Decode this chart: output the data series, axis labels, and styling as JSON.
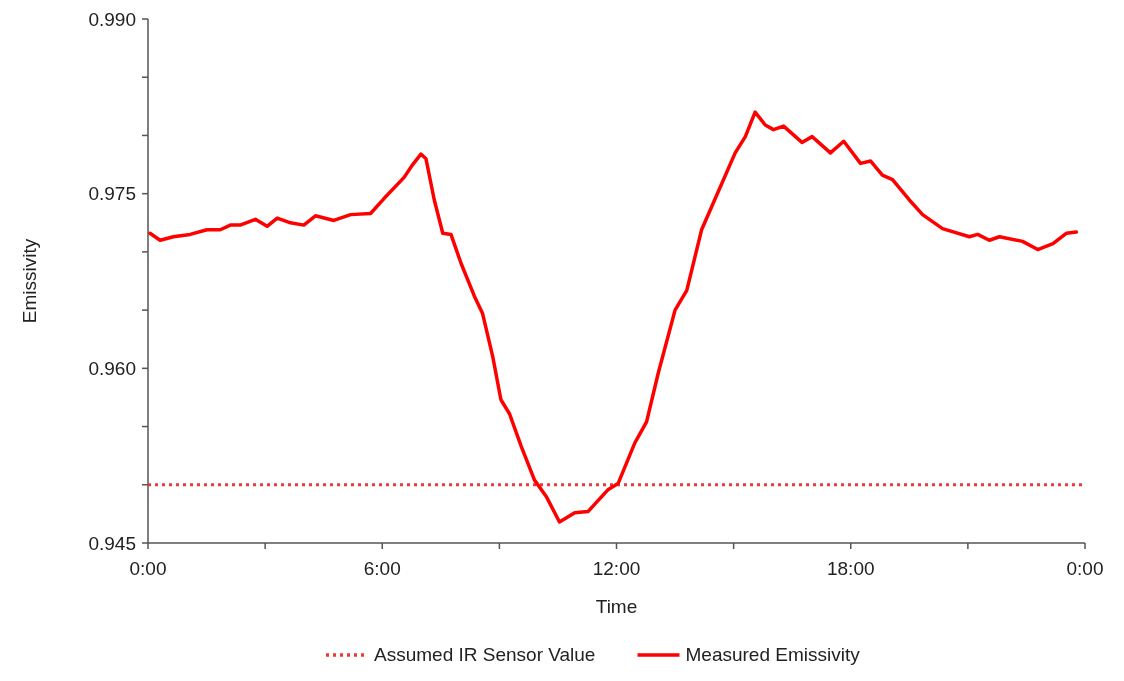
{
  "chart_data": {
    "type": "line",
    "xlabel": "Time",
    "ylabel": "Emissivity",
    "xlim": [
      0,
      24
    ],
    "ylim": [
      0.945,
      0.99
    ],
    "xticks": [
      {
        "value": 0,
        "label": "0:00"
      },
      {
        "value": 3,
        "label": null
      },
      {
        "value": 6,
        "label": "6:00"
      },
      {
        "value": 9,
        "label": null
      },
      {
        "value": 12,
        "label": "12:00"
      },
      {
        "value": 15,
        "label": null
      },
      {
        "value": 18,
        "label": "18:00"
      },
      {
        "value": 21,
        "label": null
      },
      {
        "value": 24,
        "label": "0:00"
      }
    ],
    "yticks": [
      0.945,
      {
        "value": 0.95,
        "label": null
      },
      {
        "value": 0.955,
        "label": null
      },
      {
        "value": 0.96,
        "label": "0.960"
      },
      {
        "value": 0.965,
        "label": null
      },
      {
        "value": 0.97,
        "label": null
      },
      0.975,
      {
        "value": 0.98,
        "label": null
      },
      {
        "value": 0.985,
        "label": null
      },
      {
        "value": 0.99,
        "label": "0.990"
      }
    ],
    "grid": false,
    "legend": "bottom",
    "series": [
      {
        "name": "Assumed IR Sensor Value",
        "color": "#e83a3a",
        "line_style": "dotted",
        "x": [
          0,
          24
        ],
        "values": [
          0.95,
          0.95
        ]
      },
      {
        "name": "Measured Emissivity",
        "color": "#ff0000",
        "line_style": "solid",
        "x": [
          0.05,
          0.31,
          0.65,
          1.08,
          1.51,
          1.85,
          2.11,
          2.36,
          2.75,
          3.05,
          3.31,
          3.65,
          3.99,
          4.29,
          4.76,
          5.19,
          5.7,
          6.05,
          6.56,
          6.78,
          6.99,
          7.12,
          7.33,
          7.55,
          7.76,
          8.02,
          8.36,
          8.57,
          8.83,
          9.04,
          9.26,
          9.56,
          9.9,
          10.2,
          10.54,
          10.93,
          11.27,
          11.79,
          12.04,
          12.47,
          12.77,
          13.07,
          13.5,
          13.8,
          14.18,
          14.44,
          15.04,
          15.3,
          15.55,
          15.81,
          16.02,
          16.28,
          16.75,
          17.01,
          17.48,
          17.82,
          18.25,
          18.51,
          18.81,
          19.07,
          19.49,
          19.84,
          20.35,
          21.04,
          21.25,
          21.55,
          21.81,
          22.4,
          22.79,
          23.18,
          23.52,
          23.78
        ],
        "values": [
          0.9716,
          0.971,
          0.9713,
          0.9715,
          0.9719,
          0.9719,
          0.9723,
          0.9723,
          0.9728,
          0.9722,
          0.9729,
          0.9725,
          0.9723,
          0.9731,
          0.9727,
          0.9732,
          0.9733,
          0.9746,
          0.9764,
          0.9775,
          0.9784,
          0.978,
          0.9745,
          0.9716,
          0.9715,
          0.969,
          0.9662,
          0.9647,
          0.961,
          0.9573,
          0.9561,
          0.9533,
          0.9504,
          0.949,
          0.9468,
          0.9476,
          0.9477,
          0.9496,
          0.9501,
          0.9536,
          0.9554,
          0.9596,
          0.965,
          0.9667,
          0.9719,
          0.9739,
          0.9785,
          0.9799,
          0.982,
          0.9809,
          0.9805,
          0.9808,
          0.9794,
          0.9799,
          0.9785,
          0.9795,
          0.9776,
          0.9778,
          0.9766,
          0.9762,
          0.9745,
          0.9732,
          0.972,
          0.9713,
          0.9715,
          0.971,
          0.9713,
          0.9709,
          0.9702,
          0.9707,
          0.9716,
          0.9717
        ]
      }
    ]
  }
}
